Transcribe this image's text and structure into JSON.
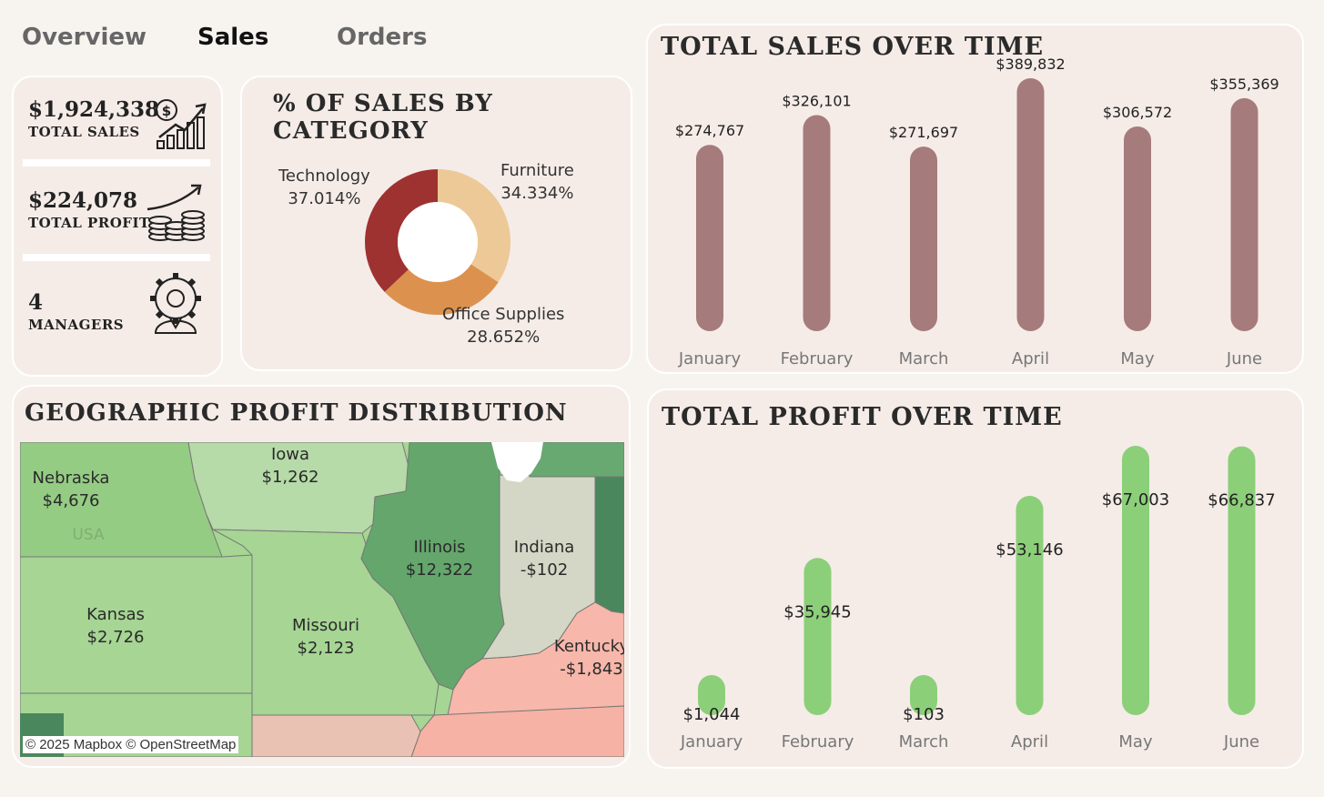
{
  "nav": {
    "tabs": [
      {
        "label": "Overview"
      },
      {
        "label": "Sales"
      },
      {
        "label": "Orders"
      }
    ],
    "active": "Sales"
  },
  "kpis": {
    "total_sales": {
      "value": "$1,924,338",
      "label": "TOTAL SALES",
      "icon": "sales-growth-icon"
    },
    "total_profit": {
      "value": "$224,078",
      "label": "TOTAL PROFIT",
      "icon": "coins-profit-icon"
    },
    "managers": {
      "value": "4",
      "label": "MANAGERS",
      "icon": "manager-gear-icon"
    }
  },
  "category": {
    "title": "% OF SALES BY CATEGORY",
    "colors": {
      "Technology": "#9e3231",
      "Furniture": "#ecc997",
      "Office Supplies": "#dc924e"
    },
    "slices": [
      {
        "name": "Furniture",
        "pct": "34.334%",
        "value": 34.334
      },
      {
        "name": "Office Supplies",
        "pct": "28.652%",
        "value": 28.652
      },
      {
        "name": "Technology",
        "pct": "37.014%",
        "value": 37.014
      }
    ]
  },
  "sales_time": {
    "title": "TOTAL SALES OVER TIME",
    "color": "#a67b7b",
    "months": [
      "January",
      "February",
      "March",
      "April",
      "May",
      "June"
    ],
    "labels": [
      "$274,767",
      "$326,101",
      "$271,697",
      "$389,832",
      "$306,572",
      "$355,369"
    ],
    "values": [
      274767,
      326101,
      271697,
      389832,
      306572,
      355369
    ]
  },
  "profit_time": {
    "title": "TOTAL PROFIT OVER TIME",
    "color": "#8ccf79",
    "months": [
      "January",
      "February",
      "March",
      "April",
      "May",
      "June"
    ],
    "labels": [
      "$1,044",
      "$35,945",
      "$103",
      "$53,146",
      "$67,003",
      "$66,837"
    ],
    "values": [
      1044,
      35945,
      103,
      53146,
      67003,
      66837
    ]
  },
  "geo": {
    "title": "GEOGRAPHIC PROFIT DISTRIBUTION",
    "country_label": "USA",
    "attribution": "© 2025 Mapbox © OpenStreetMap",
    "states": [
      {
        "name": "Nebraska",
        "profit": "$4,676"
      },
      {
        "name": "Iowa",
        "profit": "$1,262"
      },
      {
        "name": "Illinois",
        "profit": "$12,322"
      },
      {
        "name": "Indiana",
        "profit": "-$102"
      },
      {
        "name": "Kansas",
        "profit": "$2,726"
      },
      {
        "name": "Missouri",
        "profit": "$2,123"
      },
      {
        "name": "Kentucky",
        "profit": "-$1,843"
      }
    ]
  }
}
